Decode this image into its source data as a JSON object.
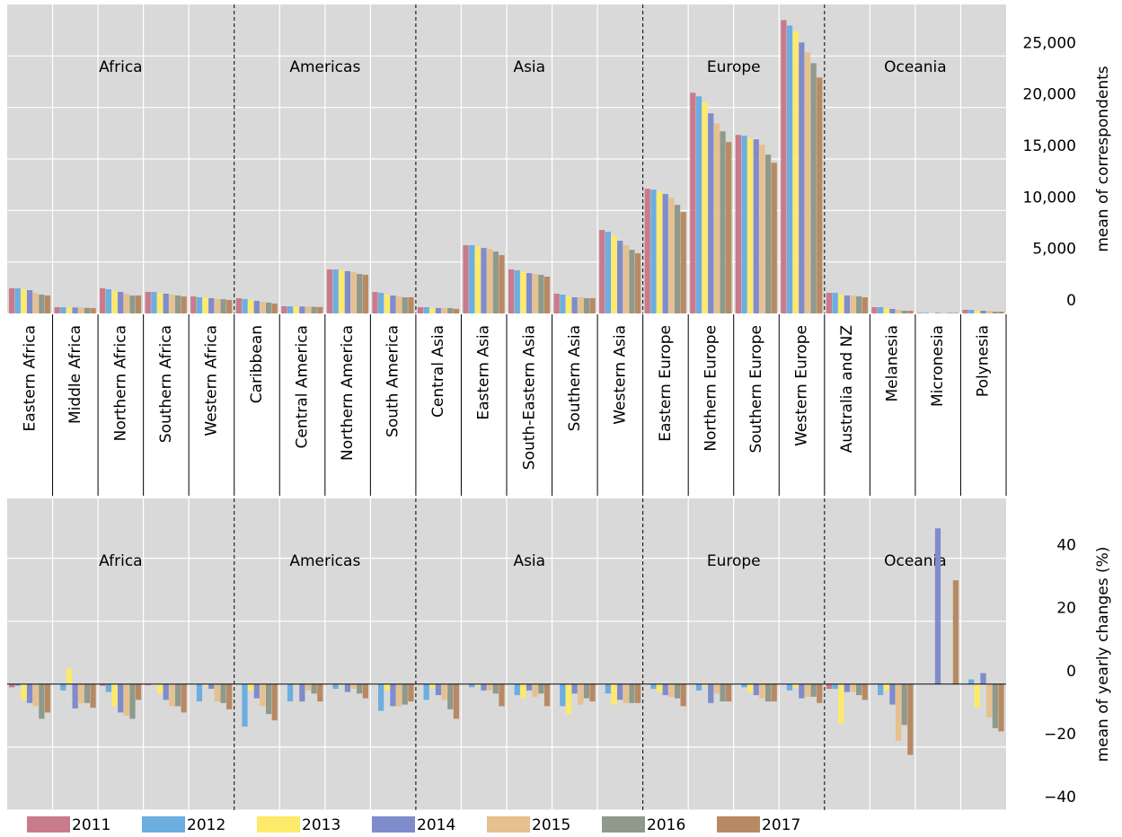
{
  "chart_data": [
    {
      "type": "bar",
      "ylabel": "mean of correspondents",
      "ylim": [
        0,
        30000
      ],
      "yticks": [
        0,
        {
          "value": 5000,
          "label": "5,000"
        },
        {
          "value": 10000,
          "label": "10,000"
        },
        {
          "value": 15000,
          "label": "15,000"
        },
        {
          "value": 20000,
          "label": "20,000"
        },
        {
          "value": 25000,
          "label": "25,000"
        }
      ],
      "grid": true,
      "panels": [
        {
          "name": "Africa",
          "categories": [
            "Eastern Africa",
            "Middle Africa",
            "Northern Africa",
            "Southern Africa",
            "Western Africa"
          ]
        },
        {
          "name": "Americas",
          "categories": [
            "Caribbean",
            "Central America",
            "Northern America",
            "South America"
          ]
        },
        {
          "name": "Asia",
          "categories": [
            "Central Asia",
            "Eastern Asia",
            "South-Eastern Asia",
            "Southern Asia",
            "Western Asia"
          ]
        },
        {
          "name": "Europe",
          "categories": [
            "Eastern Europe",
            "Northern Europe",
            "Southern Europe",
            "Western Europe"
          ]
        },
        {
          "name": "Oceania",
          "categories": [
            "Australia and NZ",
            "Melanesia",
            "Micronesia",
            "Polynesia"
          ]
        }
      ],
      "series": [
        {
          "color": "#c97b8c",
          "values": [
            2440,
            610,
            2440,
            2090,
            1650,
            1480,
            700,
            4270,
            2090,
            610,
            6620,
            4270,
            1920,
            8100,
            12110,
            21430,
            17330,
            28480,
            2000,
            610,
            60,
            350
          ]
        },
        {
          "color": "#6caee0",
          "values": [
            2440,
            600,
            2350,
            2090,
            1570,
            1390,
            690,
            4270,
            2000,
            610,
            6620,
            4180,
            1830,
            7930,
            12020,
            21080,
            17250,
            27960,
            2000,
            610,
            60,
            350
          ]
        },
        {
          "color": "#fde96a",
          "values": [
            2350,
            590,
            2180,
            2000,
            1570,
            1310,
            680,
            4180,
            1830,
            520,
            6530,
            4100,
            1650,
            7580,
            11850,
            20470,
            16990,
            27350,
            1830,
            520,
            60,
            260
          ]
        },
        {
          "color": "#7f8ccc",
          "values": [
            2260,
            580,
            2090,
            1920,
            1480,
            1220,
            670,
            4100,
            1740,
            520,
            6360,
            3920,
            1570,
            7060,
            11590,
            19430,
            16900,
            26310,
            1740,
            440,
            60,
            260
          ]
        },
        {
          "color": "#e6c08e",
          "values": [
            2000,
            560,
            1920,
            1830,
            1390,
            1130,
            650,
            4010,
            1650,
            520,
            6270,
            3830,
            1570,
            6620,
            11240,
            18470,
            16380,
            25350,
            1740,
            350,
            60,
            260
          ]
        },
        {
          "color": "#8f9a8b",
          "values": [
            1830,
            540,
            1740,
            1740,
            1390,
            1050,
            640,
            3830,
            1570,
            520,
            6010,
            3750,
            1480,
            6180,
            10540,
            17680,
            15420,
            24300,
            1650,
            260,
            60,
            170
          ]
        },
        {
          "color": "#b88a64",
          "values": [
            1740,
            520,
            1740,
            1650,
            1310,
            960,
            620,
            3750,
            1570,
            440,
            5660,
            3570,
            1480,
            5840,
            9840,
            16640,
            14630,
            22910,
            1570,
            260,
            60,
            170
          ]
        }
      ]
    },
    {
      "type": "bar",
      "ylabel": "mean of yearly changes (%)",
      "ylim": [
        -40,
        59
      ],
      "yticks": [
        {
          "value": -40,
          "label": "−40"
        },
        {
          "value": -20,
          "label": "−20"
        },
        0,
        20,
        40
      ],
      "grid": true,
      "panels": [
        {
          "name": "Africa"
        },
        {
          "name": "Americas"
        },
        {
          "name": "Asia"
        },
        {
          "name": "Europe"
        },
        {
          "name": "Oceania"
        }
      ],
      "series": [
        {
          "name": "2011",
          "color": "#c97b8c",
          "values": [
            -1,
            0,
            -0.5,
            -0.3,
            0,
            0,
            0,
            0,
            0,
            0,
            0,
            0,
            0,
            0,
            0,
            0,
            0,
            0,
            -1.5,
            0,
            0,
            0
          ]
        },
        {
          "name": "2012",
          "color": "#6caee0",
          "values": [
            -0.5,
            -2,
            -2.5,
            0,
            -5.5,
            -13.5,
            -5.5,
            -1.5,
            -8.5,
            -5,
            -1,
            -3.5,
            -7,
            -3,
            -1.5,
            -2,
            -1,
            -2,
            -1.5,
            -3.5,
            0,
            1.5
          ]
        },
        {
          "name": "2013",
          "color": "#fde96a",
          "values": [
            -5,
            4.9,
            -7,
            -3,
            -0.5,
            -2,
            -0.3,
            -0.3,
            -2,
            -1,
            -0.5,
            -4.5,
            -9.5,
            -6.5,
            -2.5,
            -0.5,
            -2.5,
            -1,
            -12.5,
            -2,
            0,
            -7.5
          ]
        },
        {
          "name": "2014",
          "color": "#7f8ccc",
          "values": [
            -6,
            -7.7,
            -9,
            -5,
            -1.5,
            -4.5,
            -5.5,
            -2.5,
            -7,
            -3.5,
            -2,
            -2,
            -3,
            -5,
            -3.5,
            -6,
            -3.5,
            -4.5,
            -2.5,
            -6.5,
            49.5,
            3.5
          ]
        },
        {
          "name": "2015",
          "color": "#e6c08e",
          "values": [
            -7,
            -6,
            -10,
            -7,
            -5.5,
            -7,
            -2,
            -1.5,
            -7,
            -5,
            -2,
            -4,
            -6.5,
            -6,
            -4,
            -3,
            -4.5,
            -4,
            -2.5,
            -18,
            0,
            -10.5
          ]
        },
        {
          "name": "2016",
          "color": "#8f9a8b",
          "values": [
            -11,
            -6,
            -11,
            -7,
            -6,
            -9.5,
            -3,
            -3,
            -6.5,
            -8,
            -3,
            -3,
            -4.5,
            -6,
            -4.5,
            -5.5,
            -5.5,
            -4,
            -3.5,
            -13,
            0,
            -14
          ]
        },
        {
          "name": "2017",
          "color": "#b88a64",
          "values": [
            -9,
            -7.5,
            -5,
            -9,
            -8,
            -11.5,
            -5.5,
            -4.5,
            -5.5,
            -11,
            -7,
            -7,
            -5.5,
            -6,
            -7,
            -5.5,
            -5.5,
            -6,
            -5,
            -22.5,
            33,
            -15
          ]
        }
      ]
    }
  ]
}
